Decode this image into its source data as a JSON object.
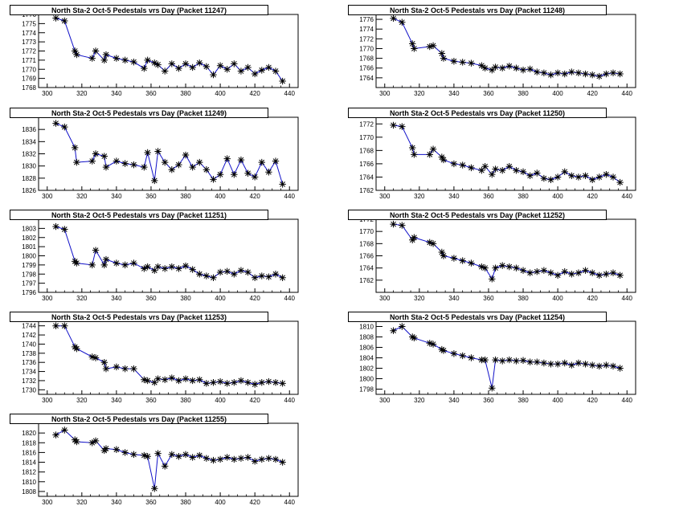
{
  "chart_data": [
    {
      "type": "line",
      "title": "North Sta-2 Oct-5 Pedestals vrs Day (Packet 11247)",
      "xlim": [
        295,
        445
      ],
      "ylim": [
        1768,
        1776
      ],
      "xticks": [
        300,
        320,
        340,
        360,
        380,
        400,
        420,
        440
      ],
      "yticks": [
        1768,
        1769,
        1770,
        1771,
        1772,
        1773,
        1774,
        1775,
        1776
      ],
      "x": [
        305,
        310,
        316,
        317,
        326,
        328,
        333,
        334,
        340,
        345,
        350,
        356,
        358,
        362,
        364,
        368,
        372,
        376,
        380,
        384,
        388,
        392,
        396,
        400,
        404,
        408,
        412,
        416,
        420,
        424,
        428,
        432,
        436
      ],
      "y": [
        1775.6,
        1775.3,
        1772.0,
        1771.6,
        1771.2,
        1772.0,
        1771.0,
        1771.6,
        1771.2,
        1771.0,
        1770.8,
        1770.1,
        1771.0,
        1770.7,
        1770.5,
        1769.8,
        1770.6,
        1770.1,
        1770.6,
        1770.2,
        1770.7,
        1770.3,
        1769.4,
        1770.4,
        1770.0,
        1770.6,
        1769.8,
        1770.2,
        1769.5,
        1769.9,
        1770.2,
        1769.8,
        1768.7
      ]
    },
    {
      "type": "line",
      "title": "North Sta-2 Oct-5 Pedestals vrs Day (Packet 11248)",
      "xlim": [
        295,
        445
      ],
      "ylim": [
        1762,
        1777
      ],
      "xticks": [
        300,
        320,
        340,
        360,
        380,
        400,
        420,
        440
      ],
      "yticks": [
        1764,
        1766,
        1768,
        1770,
        1772,
        1774,
        1776
      ],
      "x": [
        305,
        310,
        316,
        317,
        326,
        328,
        333,
        334,
        340,
        345,
        350,
        356,
        358,
        362,
        364,
        368,
        372,
        376,
        380,
        384,
        388,
        392,
        396,
        400,
        404,
        408,
        412,
        416,
        420,
        424,
        428,
        432,
        436
      ],
      "y": [
        1776.2,
        1775.4,
        1771.0,
        1770.0,
        1770.4,
        1770.6,
        1769.0,
        1768.0,
        1767.4,
        1767.2,
        1767.0,
        1766.5,
        1766.0,
        1765.6,
        1766.2,
        1766.0,
        1766.4,
        1766.0,
        1765.6,
        1765.8,
        1765.2,
        1765.0,
        1764.6,
        1765.0,
        1764.8,
        1765.2,
        1765.0,
        1764.8,
        1764.6,
        1764.3,
        1764.8,
        1765.0,
        1764.8
      ]
    },
    {
      "type": "line",
      "title": "North Sta-2 Oct-5 Pedestals vrs Day (Packet 11249)",
      "xlim": [
        295,
        445
      ],
      "ylim": [
        1826,
        1838
      ],
      "xticks": [
        300,
        320,
        340,
        360,
        380,
        400,
        420,
        440
      ],
      "yticks": [
        1826,
        1828,
        1830,
        1832,
        1834,
        1836
      ],
      "x": [
        305,
        310,
        316,
        317,
        326,
        328,
        333,
        334,
        340,
        345,
        350,
        356,
        358,
        362,
        364,
        368,
        372,
        376,
        380,
        384,
        388,
        392,
        396,
        400,
        404,
        408,
        412,
        416,
        420,
        424,
        428,
        432,
        436
      ],
      "y": [
        1837.0,
        1836.4,
        1833.0,
        1830.6,
        1830.8,
        1832.0,
        1831.6,
        1829.8,
        1830.8,
        1830.4,
        1830.2,
        1829.8,
        1832.2,
        1827.6,
        1832.4,
        1830.6,
        1829.4,
        1830.2,
        1831.8,
        1829.8,
        1830.6,
        1829.4,
        1827.8,
        1828.6,
        1831.2,
        1828.6,
        1831.0,
        1828.8,
        1828.2,
        1830.6,
        1829.0,
        1830.8,
        1827.0
      ]
    },
    {
      "type": "line",
      "title": "North Sta-2 Oct-5 Pedestals vrs Day (Packet 11250)",
      "xlim": [
        295,
        445
      ],
      "ylim": [
        1762,
        1773
      ],
      "xticks": [
        300,
        320,
        340,
        360,
        380,
        400,
        420,
        440
      ],
      "yticks": [
        1762,
        1764,
        1766,
        1768,
        1770,
        1772
      ],
      "x": [
        305,
        310,
        316,
        317,
        326,
        328,
        333,
        334,
        340,
        345,
        350,
        356,
        358,
        362,
        364,
        368,
        372,
        376,
        380,
        384,
        388,
        392,
        396,
        400,
        404,
        408,
        412,
        416,
        420,
        424,
        428,
        432,
        436
      ],
      "y": [
        1771.8,
        1771.6,
        1768.4,
        1767.4,
        1767.4,
        1768.2,
        1767.0,
        1766.6,
        1766.0,
        1765.8,
        1765.4,
        1765.0,
        1765.6,
        1764.4,
        1765.2,
        1765.0,
        1765.6,
        1765.0,
        1764.8,
        1764.2,
        1764.6,
        1763.8,
        1763.6,
        1764.0,
        1764.8,
        1764.2,
        1764.0,
        1764.2,
        1763.6,
        1764.0,
        1764.4,
        1764.0,
        1763.2
      ]
    },
    {
      "type": "line",
      "title": "North Sta-2 Oct-5 Pedestals vrs Day (Packet 11251)",
      "xlim": [
        295,
        445
      ],
      "ylim": [
        1796,
        1804
      ],
      "xticks": [
        300,
        320,
        340,
        360,
        380,
        400,
        420,
        440
      ],
      "yticks": [
        1796,
        1797,
        1798,
        1799,
        1800,
        1801,
        1802,
        1803
      ],
      "x": [
        305,
        310,
        316,
        317,
        326,
        328,
        333,
        334,
        340,
        345,
        350,
        356,
        358,
        362,
        364,
        368,
        372,
        376,
        380,
        384,
        388,
        392,
        396,
        400,
        404,
        408,
        412,
        416,
        420,
        424,
        428,
        432,
        436
      ],
      "y": [
        1803.2,
        1802.9,
        1799.4,
        1799.2,
        1799.0,
        1800.6,
        1799.0,
        1799.6,
        1799.2,
        1799.0,
        1799.2,
        1798.6,
        1798.8,
        1798.4,
        1798.8,
        1798.6,
        1798.8,
        1798.6,
        1798.9,
        1798.5,
        1798.0,
        1797.8,
        1797.6,
        1798.2,
        1798.3,
        1798.0,
        1798.4,
        1798.2,
        1797.6,
        1797.8,
        1797.7,
        1798.0,
        1797.6
      ]
    },
    {
      "type": "line",
      "title": "North Sta-2 Oct-5 Pedestals vrs Day (Packet 11252)",
      "xlim": [
        295,
        445
      ],
      "ylim": [
        1760,
        1772
      ],
      "xticks": [
        300,
        320,
        340,
        360,
        380,
        400,
        420,
        440
      ],
      "yticks": [
        1762,
        1764,
        1766,
        1768,
        1770,
        1772
      ],
      "x": [
        305,
        310,
        316,
        317,
        326,
        328,
        333,
        334,
        340,
        345,
        350,
        356,
        358,
        362,
        364,
        368,
        372,
        376,
        380,
        384,
        388,
        392,
        396,
        400,
        404,
        408,
        412,
        416,
        420,
        424,
        428,
        432,
        436
      ],
      "y": [
        1771.2,
        1771.0,
        1768.6,
        1769.0,
        1768.2,
        1768.0,
        1766.6,
        1766.0,
        1765.6,
        1765.2,
        1764.8,
        1764.2,
        1764.0,
        1762.2,
        1764.0,
        1764.4,
        1764.2,
        1764.0,
        1763.6,
        1763.2,
        1763.4,
        1763.6,
        1763.2,
        1762.8,
        1763.4,
        1763.0,
        1763.2,
        1763.6,
        1763.2,
        1762.8,
        1763.0,
        1763.2,
        1762.8
      ]
    },
    {
      "type": "line",
      "title": "North Sta-2 Oct-5 Pedestals vrs Day (Packet 11253)",
      "xlim": [
        295,
        445
      ],
      "ylim": [
        1729,
        1745
      ],
      "xticks": [
        300,
        320,
        340,
        360,
        380,
        400,
        420,
        440
      ],
      "yticks": [
        1730,
        1732,
        1734,
        1736,
        1738,
        1740,
        1742,
        1744
      ],
      "x": [
        305,
        310,
        316,
        317,
        326,
        328,
        333,
        334,
        340,
        345,
        350,
        356,
        358,
        362,
        364,
        368,
        372,
        376,
        380,
        384,
        388,
        392,
        396,
        400,
        404,
        408,
        412,
        416,
        420,
        424,
        428,
        432,
        436
      ],
      "y": [
        1744.0,
        1744.0,
        1739.4,
        1739.0,
        1737.2,
        1737.0,
        1736.0,
        1734.6,
        1735.0,
        1734.6,
        1734.6,
        1732.2,
        1732.0,
        1731.6,
        1732.4,
        1732.2,
        1732.6,
        1732.0,
        1732.4,
        1732.0,
        1732.2,
        1731.4,
        1731.6,
        1731.8,
        1731.4,
        1731.6,
        1732.0,
        1731.6,
        1731.2,
        1731.6,
        1731.8,
        1731.6,
        1731.4
      ]
    },
    {
      "type": "line",
      "title": "North Sta-2 Oct-5 Pedestals vrs Day (Packet 11254)",
      "xlim": [
        295,
        445
      ],
      "ylim": [
        1797,
        1811
      ],
      "xticks": [
        300,
        320,
        340,
        360,
        380,
        400,
        420,
        440
      ],
      "yticks": [
        1798,
        1800,
        1802,
        1804,
        1806,
        1808,
        1810
      ],
      "x": [
        305,
        310,
        316,
        317,
        326,
        328,
        333,
        334,
        340,
        345,
        350,
        356,
        358,
        362,
        364,
        368,
        372,
        376,
        380,
        384,
        388,
        392,
        396,
        400,
        404,
        408,
        412,
        416,
        420,
        424,
        428,
        432,
        436
      ],
      "y": [
        1809.2,
        1810.0,
        1808.0,
        1807.8,
        1806.8,
        1806.6,
        1805.6,
        1805.4,
        1804.8,
        1804.4,
        1804.0,
        1803.6,
        1803.6,
        1798.2,
        1803.6,
        1803.4,
        1803.6,
        1803.4,
        1803.5,
        1803.2,
        1803.2,
        1803.0,
        1802.8,
        1802.8,
        1803.0,
        1802.6,
        1803.0,
        1802.8,
        1802.6,
        1802.4,
        1802.6,
        1802.4,
        1802.0
      ]
    },
    {
      "type": "line",
      "title": "North Sta-2 Oct-5 Pedestals vrs Day (Packet 11255)",
      "xlim": [
        295,
        445
      ],
      "ylim": [
        1807,
        1822
      ],
      "xticks": [
        300,
        320,
        340,
        360,
        380,
        400,
        420,
        440
      ],
      "yticks": [
        1808,
        1810,
        1812,
        1814,
        1816,
        1818,
        1820
      ],
      "x": [
        305,
        310,
        316,
        317,
        326,
        328,
        333,
        334,
        340,
        345,
        350,
        356,
        358,
        362,
        364,
        368,
        372,
        376,
        380,
        384,
        388,
        392,
        396,
        400,
        404,
        408,
        412,
        416,
        420,
        424,
        428,
        432,
        436
      ],
      "y": [
        1819.6,
        1820.6,
        1818.6,
        1818.2,
        1818.0,
        1818.4,
        1816.4,
        1816.8,
        1816.6,
        1816.0,
        1815.6,
        1815.4,
        1815.2,
        1808.6,
        1815.8,
        1813.2,
        1815.6,
        1815.2,
        1815.6,
        1815.0,
        1815.4,
        1814.8,
        1814.4,
        1814.6,
        1815.0,
        1814.6,
        1814.8,
        1815.0,
        1814.2,
        1814.6,
        1814.8,
        1814.6,
        1814.0
      ]
    }
  ]
}
